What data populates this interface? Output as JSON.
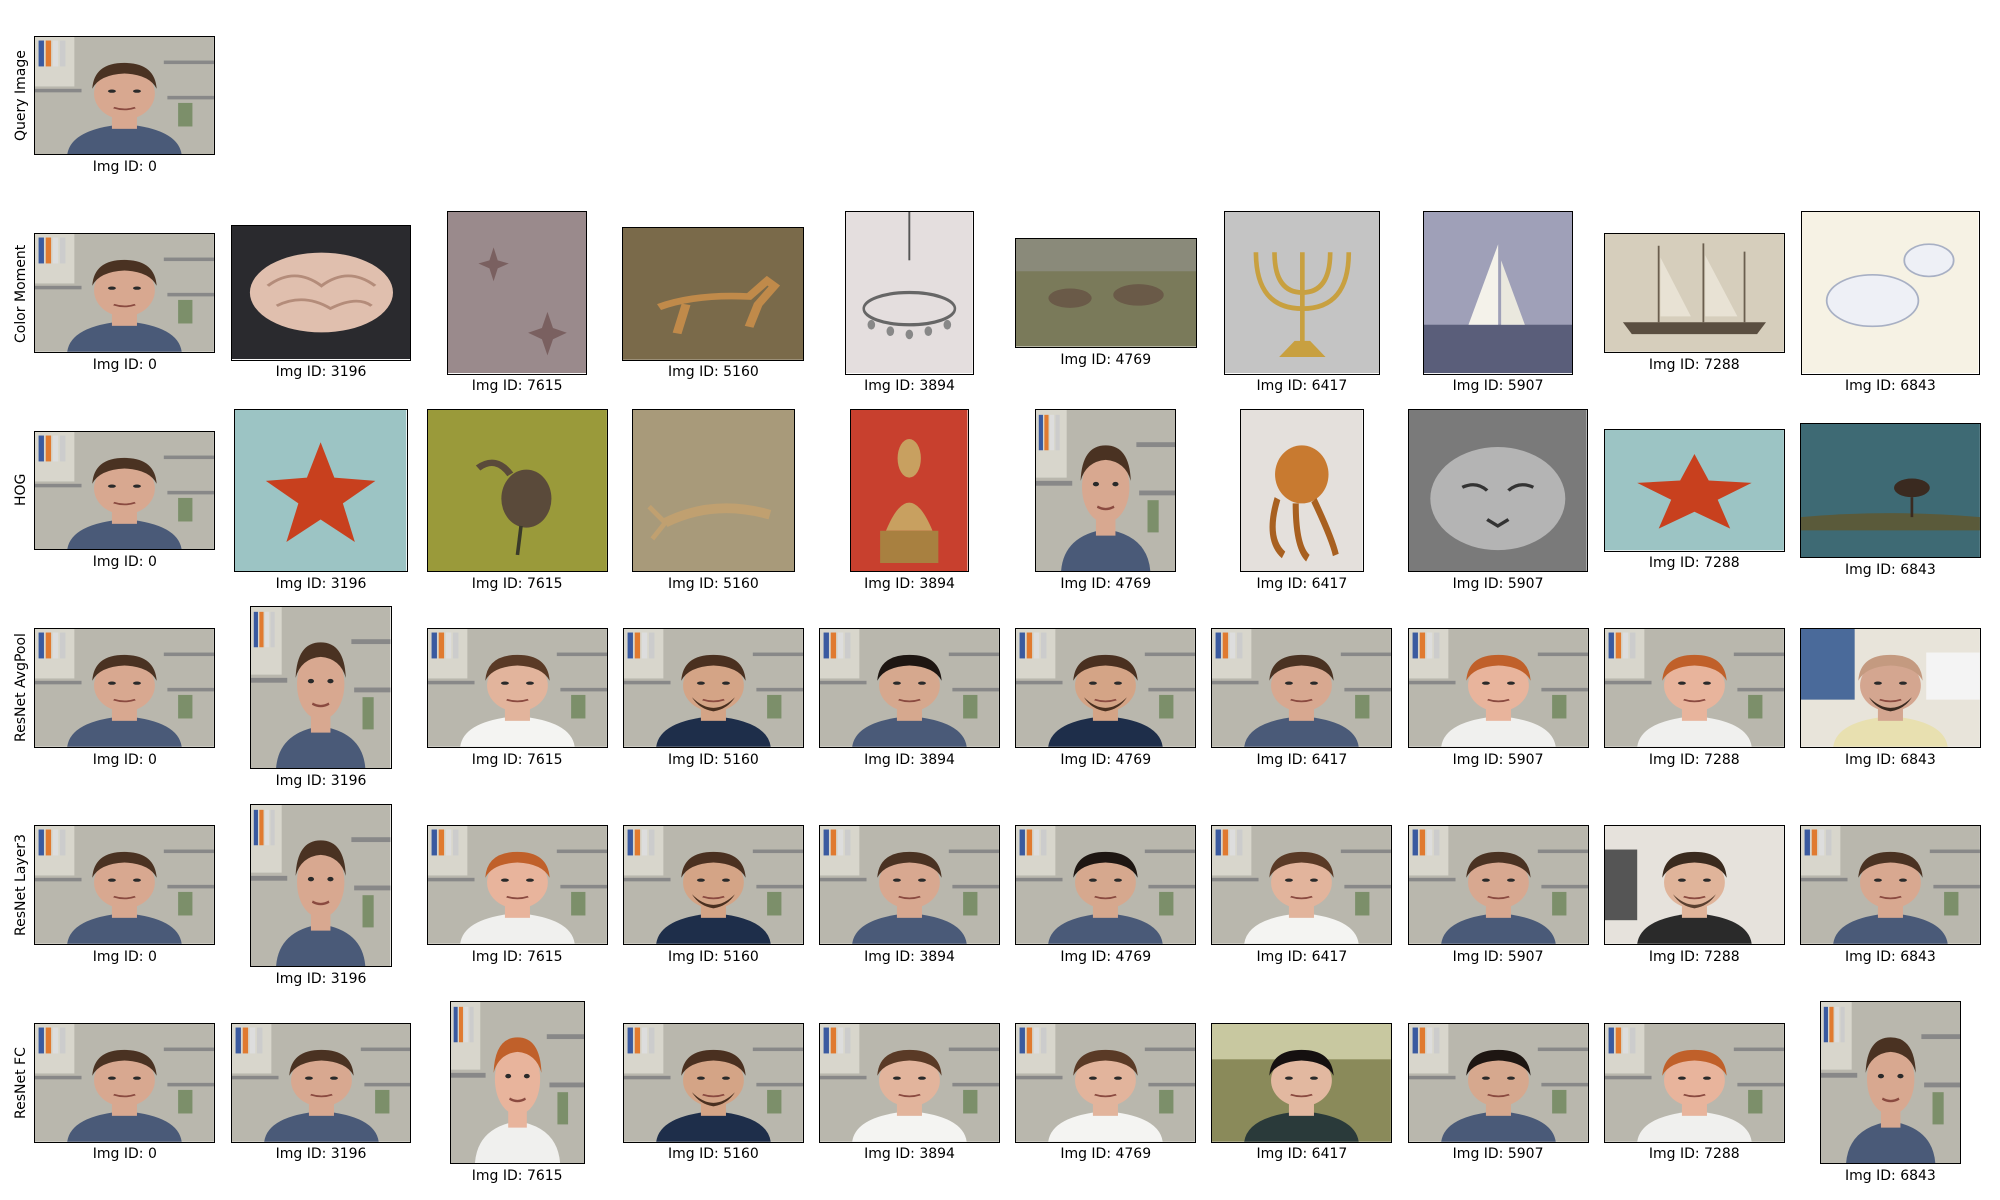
{
  "rows": [
    {
      "label": "Query Image",
      "images": [
        {
          "caption": "Img ID: 0",
          "icon": "office-man-face"
        }
      ]
    },
    {
      "label": "Color Moment",
      "images": [
        {
          "caption": "Img ID: 0",
          "icon": "office-man-face"
        },
        {
          "caption": "Img ID: 3196",
          "icon": "brain"
        },
        {
          "caption": "Img ID: 7615",
          "icon": "starfish-on-sand"
        },
        {
          "caption": "Img ID: 5160",
          "icon": "gazelle"
        },
        {
          "caption": "Img ID: 3894",
          "icon": "chandelier"
        },
        {
          "caption": "Img ID: 4769",
          "icon": "emus"
        },
        {
          "caption": "Img ID: 6417",
          "icon": "menorah"
        },
        {
          "caption": "Img ID: 5907",
          "icon": "sailboat"
        },
        {
          "caption": "Img ID: 7288",
          "icon": "schooner"
        },
        {
          "caption": "Img ID: 6843",
          "icon": "white-doves"
        }
      ]
    },
    {
      "label": "HOG",
      "images": [
        {
          "caption": "Img ID: 0",
          "icon": "office-man-face"
        },
        {
          "caption": "Img ID: 3196",
          "icon": "red-starfish"
        },
        {
          "caption": "Img ID: 7615",
          "icon": "ibis-bird"
        },
        {
          "caption": "Img ID: 5160",
          "icon": "crayfish"
        },
        {
          "caption": "Img ID: 3894",
          "icon": "buddha-statue"
        },
        {
          "caption": "Img ID: 4769",
          "icon": "office-man-face"
        },
        {
          "caption": "Img ID: 6417",
          "icon": "octopus"
        },
        {
          "caption": "Img ID: 5907",
          "icon": "cat-face"
        },
        {
          "caption": "Img ID: 7288",
          "icon": "red-starfish"
        },
        {
          "caption": "Img ID: 6843",
          "icon": "wading-bird"
        }
      ]
    },
    {
      "label": "ResNet AvgPool",
      "images": [
        {
          "caption": "Img ID: 0",
          "icon": "office-man-face"
        },
        {
          "caption": "Img ID: 3196",
          "icon": "office-man-face"
        },
        {
          "caption": "Img ID: 7615",
          "icon": "office-face"
        },
        {
          "caption": "Img ID: 5160",
          "icon": "bearded-face"
        },
        {
          "caption": "Img ID: 3894",
          "icon": "dark-hair-face"
        },
        {
          "caption": "Img ID: 4769",
          "icon": "bearded-face"
        },
        {
          "caption": "Img ID: 6417",
          "icon": "office-man-face"
        },
        {
          "caption": "Img ID: 5907",
          "icon": "red-hair-face"
        },
        {
          "caption": "Img ID: 7288",
          "icon": "red-hair-face"
        },
        {
          "caption": "Img ID: 6843",
          "icon": "bald-face"
        }
      ]
    },
    {
      "label": "ResNet Layer3",
      "images": [
        {
          "caption": "Img ID: 0",
          "icon": "office-man-face"
        },
        {
          "caption": "Img ID: 3196",
          "icon": "office-man-face"
        },
        {
          "caption": "Img ID: 7615",
          "icon": "red-hair-face"
        },
        {
          "caption": "Img ID: 5160",
          "icon": "bearded-face"
        },
        {
          "caption": "Img ID: 3894",
          "icon": "office-man-face"
        },
        {
          "caption": "Img ID: 4769",
          "icon": "dark-hair-face"
        },
        {
          "caption": "Img ID: 6417",
          "icon": "office-face"
        },
        {
          "caption": "Img ID: 5907",
          "icon": "office-man-face"
        },
        {
          "caption": "Img ID: 7288",
          "icon": "long-hair-face"
        },
        {
          "caption": "Img ID: 6843",
          "icon": "office-man-face"
        }
      ]
    },
    {
      "label": "ResNet FC",
      "images": [
        {
          "caption": "Img ID: 0",
          "icon": "office-man-face"
        },
        {
          "caption": "Img ID: 3196",
          "icon": "office-man-face"
        },
        {
          "caption": "Img ID: 7615",
          "icon": "red-hair-face"
        },
        {
          "caption": "Img ID: 5160",
          "icon": "bearded-face"
        },
        {
          "caption": "Img ID: 3894",
          "icon": "office-face"
        },
        {
          "caption": "Img ID: 4769",
          "icon": "office-face"
        },
        {
          "caption": "Img ID: 6417",
          "icon": "woman-face"
        },
        {
          "caption": "Img ID: 5907",
          "icon": "dark-hair-face"
        },
        {
          "caption": "Img ID: 7288",
          "icon": "red-hair-face"
        },
        {
          "caption": "Img ID: 6843",
          "icon": "office-man-face"
        }
      ]
    }
  ],
  "colors": {
    "background": "#ffffff",
    "border": "#000000",
    "caption": "#000000"
  }
}
